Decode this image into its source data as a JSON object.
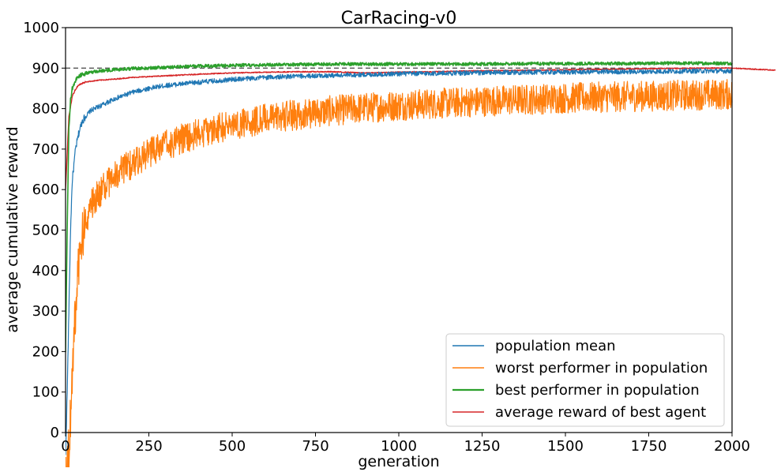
{
  "chart_data": {
    "type": "line",
    "title": "CarRacing-v0",
    "xlabel": "generation",
    "ylabel": "average cumulative reward",
    "xlim": [
      0,
      2000
    ],
    "ylim": [
      0,
      1000
    ],
    "xticks": [
      0,
      250,
      500,
      750,
      1000,
      1250,
      1500,
      1750,
      2000
    ],
    "yticks": [
      0,
      100,
      200,
      300,
      400,
      500,
      600,
      700,
      800,
      900,
      1000
    ],
    "grid": false,
    "legend_position": "lower-right",
    "reference_line": {
      "y": 900,
      "style": "dashed",
      "color": "#555555"
    },
    "series": [
      {
        "name": "population mean",
        "color": "#1f77b4",
        "x": [
          0,
          5,
          10,
          15,
          20,
          30,
          40,
          50,
          75,
          100,
          150,
          200,
          250,
          300,
          400,
          500,
          600,
          700,
          800,
          900,
          1000,
          1100,
          1200,
          1300,
          1400,
          1500,
          1600,
          1700,
          1800,
          1900,
          2000
        ],
        "y": [
          -60,
          100,
          300,
          500,
          620,
          700,
          740,
          770,
          795,
          805,
          825,
          840,
          850,
          857,
          865,
          872,
          877,
          880,
          882,
          884,
          886,
          887,
          888,
          889,
          890,
          890,
          891,
          891,
          892,
          893,
          893
        ],
        "noise": 6
      },
      {
        "name": "worst performer in population",
        "color": "#ff7f0e",
        "x": [
          0,
          10,
          20,
          30,
          40,
          50,
          60,
          75,
          100,
          125,
          150,
          200,
          250,
          300,
          350,
          400,
          500,
          600,
          700,
          800,
          900,
          1000,
          1100,
          1200,
          1300,
          1400,
          1500,
          1600,
          1700,
          1800,
          1900,
          2000
        ],
        "y": [
          -90,
          -50,
          150,
          300,
          420,
          480,
          520,
          560,
          590,
          615,
          635,
          665,
          690,
          710,
          725,
          740,
          760,
          775,
          785,
          795,
          802,
          808,
          812,
          816,
          820,
          823,
          826,
          828,
          830,
          832,
          834,
          835
        ],
        "noise": 38
      },
      {
        "name": "best performer in population",
        "color": "#2ca02c",
        "x": [
          0,
          5,
          10,
          15,
          20,
          30,
          40,
          50,
          75,
          100,
          150,
          200,
          300,
          400,
          500,
          600,
          700,
          800,
          1000,
          1200,
          1400,
          1600,
          1800,
          2000
        ],
        "y": [
          200,
          500,
          750,
          820,
          850,
          870,
          880,
          885,
          890,
          893,
          896,
          899,
          902,
          905,
          907,
          908,
          909,
          910,
          910,
          910,
          911,
          911,
          912,
          912
        ],
        "noise": 4
      },
      {
        "name": "average reward of best agent",
        "color": "#d62728",
        "x": [
          0,
          10,
          20,
          30,
          40,
          50,
          60,
          80,
          100,
          150,
          200,
          300,
          400,
          500,
          600,
          700,
          800,
          900,
          1000,
          1100,
          1200,
          1300,
          1400,
          1500,
          1600,
          1700,
          1800,
          1900,
          2000,
          2130
        ],
        "y": [
          600,
          780,
          830,
          848,
          858,
          862,
          866,
          868,
          870,
          873,
          877,
          881,
          885,
          888,
          890,
          891,
          891,
          888,
          890,
          891,
          893,
          894,
          895,
          896,
          897,
          898,
          899,
          900,
          900,
          895
        ],
        "noise": 1.2
      }
    ]
  }
}
